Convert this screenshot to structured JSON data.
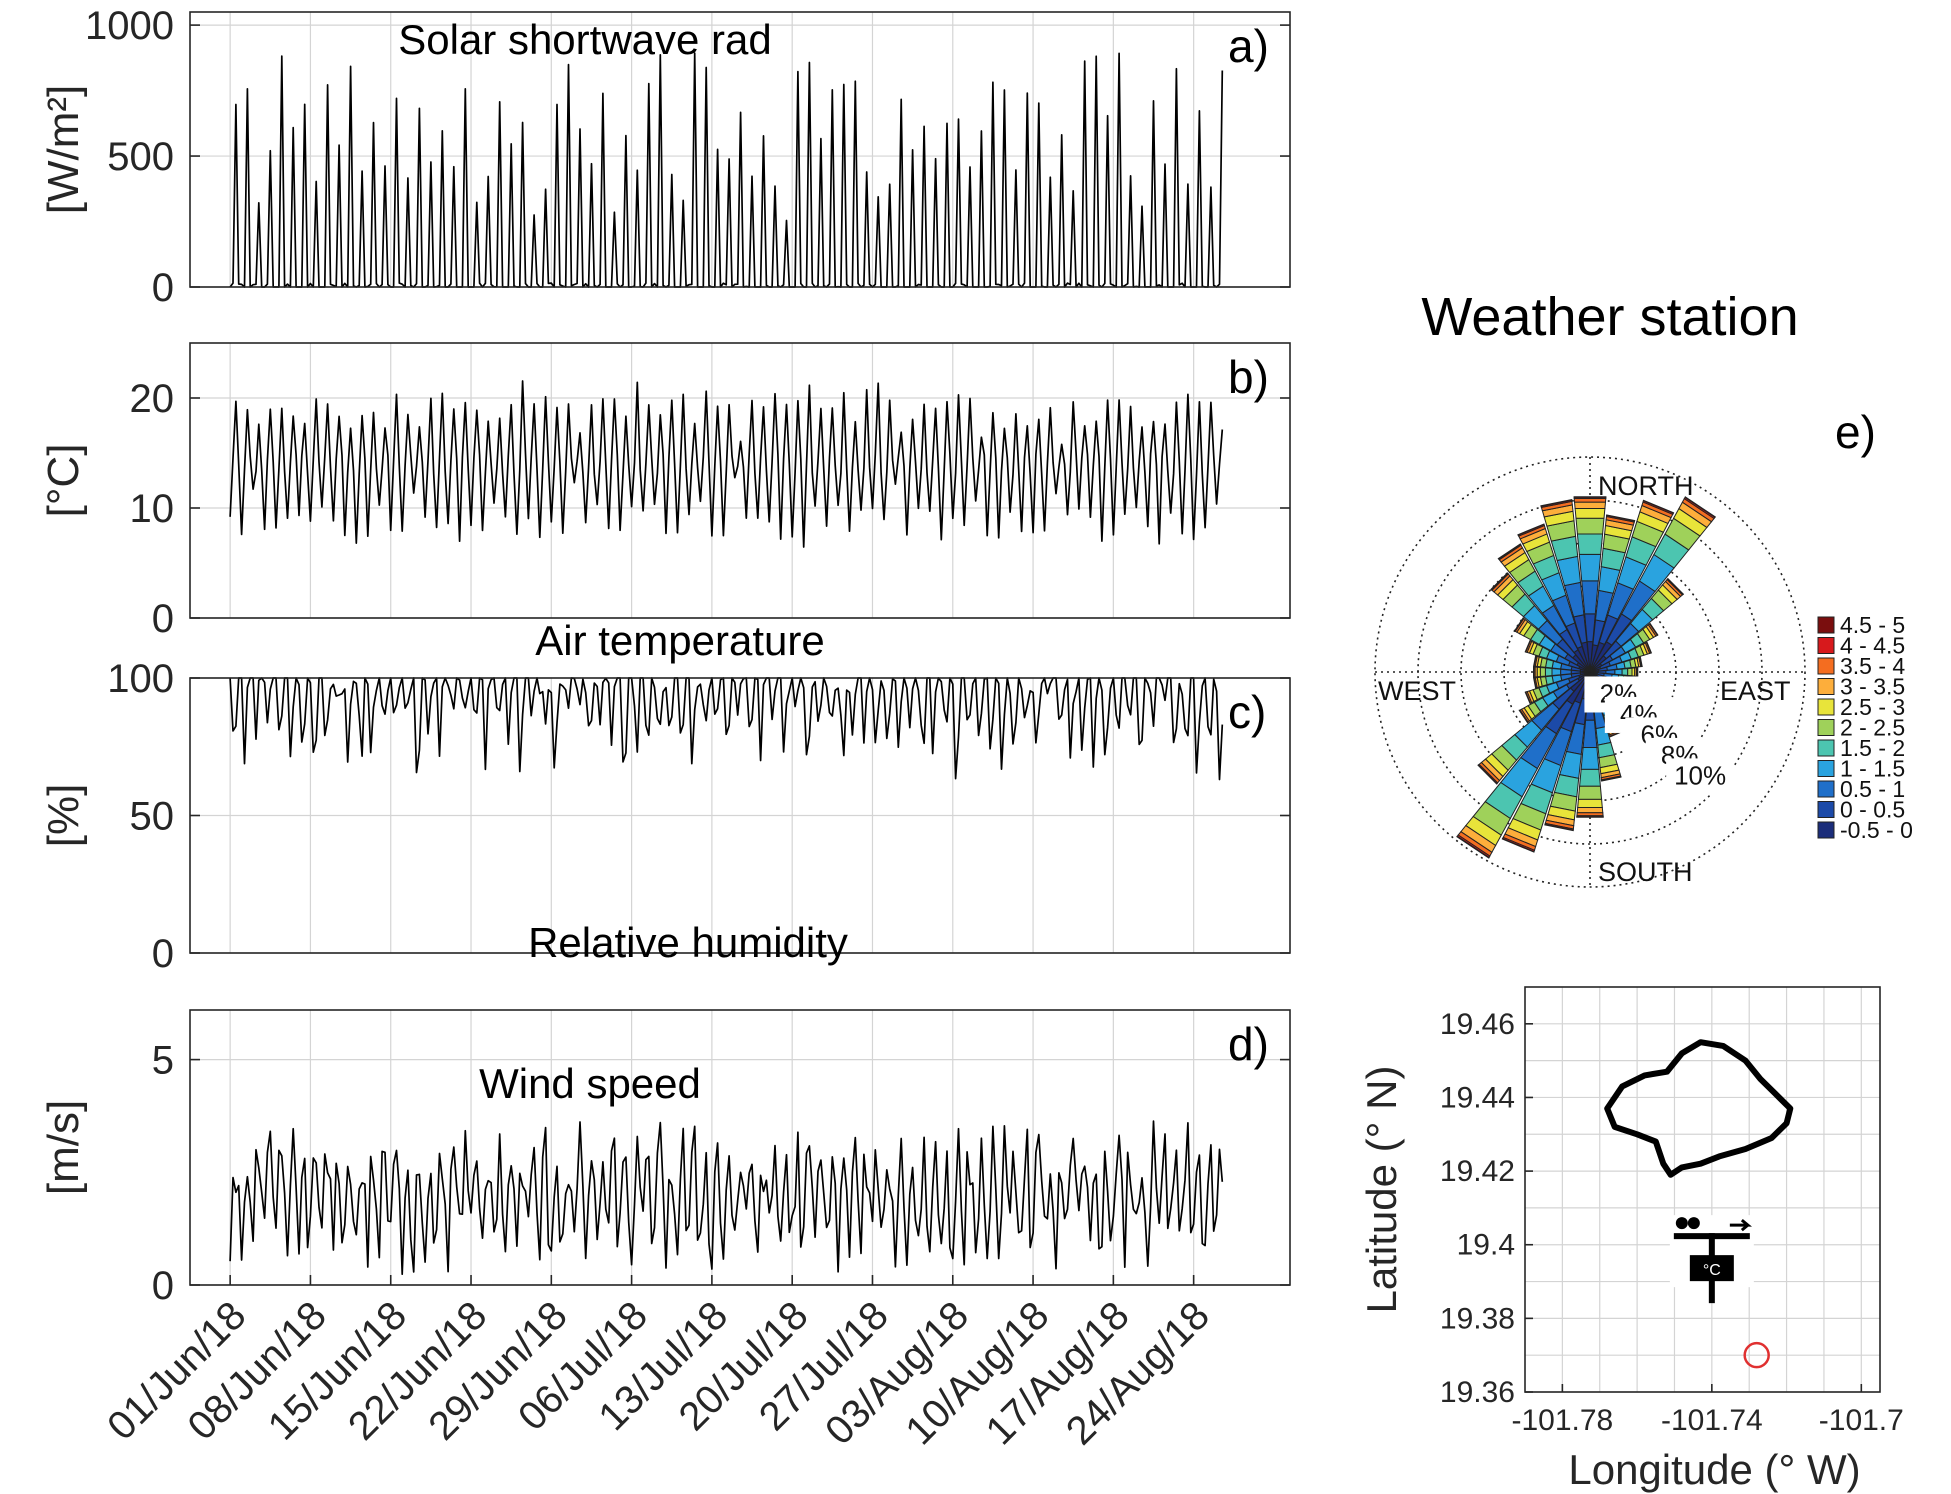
{
  "chart_data": [
    {
      "id": "a",
      "type": "line",
      "title": "Solar shortwave rad",
      "panel_label": "a)",
      "ylabel": "[W/m²]",
      "ylim": [
        0,
        1050
      ],
      "yticks": [
        0,
        500,
        1000
      ],
      "x_range": [
        -0.5,
        13.2
      ],
      "data_start": 0,
      "data_end": 12.35,
      "generator": "solar"
    },
    {
      "id": "b",
      "type": "line",
      "title": "Air temperature",
      "panel_label": "b)",
      "ylabel": "[°C]",
      "ylim": [
        0,
        25
      ],
      "yticks": [
        0,
        10,
        20
      ],
      "x_range": [
        -0.5,
        13.2
      ],
      "data_start": 0,
      "data_end": 12.35,
      "generator": "temp"
    },
    {
      "id": "c",
      "type": "line",
      "title": "Relative humidity",
      "panel_label": "c)",
      "ylabel": "[%]",
      "ylim": [
        0,
        100
      ],
      "yticks": [
        0,
        50,
        100
      ],
      "x_range": [
        -0.5,
        13.2
      ],
      "data_start": 0,
      "data_end": 12.35,
      "generator": "rh"
    },
    {
      "id": "d",
      "type": "line",
      "title": "Wind speed",
      "panel_label": "d)",
      "ylabel": "[m/s]",
      "ylim": [
        0,
        6.1
      ],
      "yticks": [
        0,
        5
      ],
      "x_range": [
        -0.5,
        13.2
      ],
      "data_start": 0,
      "data_end": 12.35,
      "generator": "wind",
      "x_tick_labels": [
        "01/Jun/18",
        "08/Jun/18",
        "15/Jun/18",
        "22/Jun/18",
        "29/Jun/18",
        "06/Jul/18",
        "13/Jul/18",
        "20/Jul/18",
        "27/Jul/18",
        "03/Aug/18",
        "10/Aug/18",
        "17/Aug/18",
        "24/Aug/18"
      ]
    },
    {
      "id": "e",
      "type": "windrose",
      "title": "Weather station",
      "panel_label": "e)",
      "directions": {
        "north": "NORTH",
        "south": "SOUTH",
        "east": "EAST",
        "west": "WEST"
      },
      "ring_labels": [
        "2%",
        "4%",
        "6%",
        "8%",
        "10%"
      ],
      "max_percent": 10,
      "legend_title": "",
      "legend": [
        {
          "label": "4.5 - 5",
          "color": "#7a0e0e"
        },
        {
          "label": "4 - 4.5",
          "color": "#d7191c"
        },
        {
          "label": "3.5 - 4",
          "color": "#f46d20"
        },
        {
          "label": "3 - 3.5",
          "color": "#fdae3b"
        },
        {
          "label": "2.5 - 3",
          "color": "#e8e43a"
        },
        {
          "label": "2 - 2.5",
          "color": "#9fd15a"
        },
        {
          "label": "1.5 - 2",
          "color": "#4cc5b0"
        },
        {
          "label": "1 - 1.5",
          "color": "#2aa3df"
        },
        {
          "label": "0.5 - 1",
          "color": "#1f6fc9"
        },
        {
          "label": "0 - 0.5",
          "color": "#1c4aa8"
        },
        {
          "label": "-0.5 - 0",
          "color": "#1b2d7a"
        }
      ],
      "bins_from_north_clockwise_deg": [
        0,
        11.25,
        22.5,
        33.75,
        45,
        56.25,
        67.5,
        78.75,
        90,
        101.25,
        112.5,
        123.75,
        135,
        146.25,
        157.5,
        168.75,
        180,
        191.25,
        202.5,
        213.75,
        225,
        236.25,
        247.5,
        258.75,
        270,
        281.25,
        292.5,
        303.75,
        315,
        326.25,
        337.5,
        348.75
      ],
      "bin_percent": [
        6.7,
        5.4,
        7.0,
        8.6,
        3.2,
        1.3,
        0.9,
        0.6,
        0.5,
        0.4,
        0.4,
        0.4,
        0.5,
        0.6,
        1.0,
        2.6,
        4.6,
        5.5,
        7.7,
        9.7,
        4.6,
        1.4,
        1.0,
        0.7,
        0.7,
        0.7,
        1.0,
        1.6,
        3.6,
        4.6,
        5.2,
        6.5
      ]
    },
    {
      "id": "map",
      "type": "scatter",
      "xlabel": "Longitude (° W)",
      "ylabel": "Latitude (° N)",
      "xlim": [
        -101.79,
        -101.695
      ],
      "ylim": [
        19.36,
        19.47
      ],
      "xticks": [
        -101.78,
        -101.74,
        -101.7
      ],
      "yticks": [
        19.36,
        19.38,
        19.4,
        19.42,
        19.44,
        19.46
      ],
      "lake_outline_lonlat": [
        [
          -101.768,
          19.437
        ],
        [
          -101.764,
          19.443
        ],
        [
          -101.758,
          19.446
        ],
        [
          -101.752,
          19.447
        ],
        [
          -101.748,
          19.452
        ],
        [
          -101.743,
          19.455
        ],
        [
          -101.737,
          19.454
        ],
        [
          -101.731,
          19.45
        ],
        [
          -101.727,
          19.445
        ],
        [
          -101.723,
          19.441
        ],
        [
          -101.719,
          19.437
        ],
        [
          -101.72,
          19.433
        ],
        [
          -101.724,
          19.429
        ],
        [
          -101.731,
          19.426
        ],
        [
          -101.738,
          19.424
        ],
        [
          -101.743,
          19.422
        ],
        [
          -101.748,
          19.421
        ],
        [
          -101.751,
          19.419
        ],
        [
          -101.753,
          19.422
        ],
        [
          -101.755,
          19.428
        ],
        [
          -101.76,
          19.43
        ],
        [
          -101.766,
          19.432
        ],
        [
          -101.768,
          19.437
        ]
      ],
      "station_marker_lonlat": [
        -101.74,
        19.395
      ],
      "red_circle_lonlat": [
        -101.728,
        19.37
      ]
    }
  ]
}
